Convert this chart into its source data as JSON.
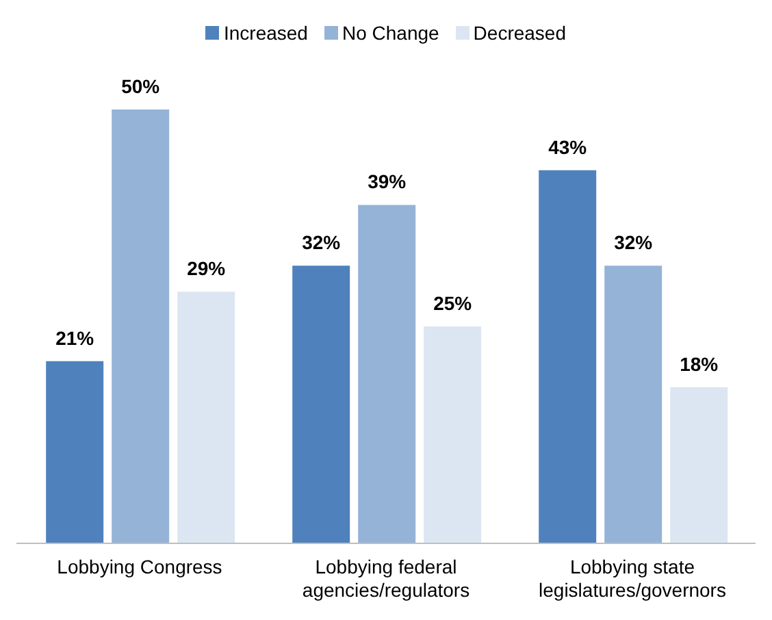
{
  "chart_data": {
    "type": "bar",
    "categories": [
      "Lobbying Congress",
      "Lobbying federal agencies/regulators",
      "Lobbying state legislatures/governors"
    ],
    "series": [
      {
        "name": "Increased",
        "color": "#4f81bd",
        "values": [
          21,
          32,
          43
        ],
        "value_labels": [
          "21%",
          "32%",
          "43%"
        ]
      },
      {
        "name": "No Change",
        "color": "#95b3d7",
        "values": [
          50,
          39,
          32
        ],
        "value_labels": [
          "50%",
          "39%",
          "32%"
        ]
      },
      {
        "name": "Decreased",
        "color": "#dce6f2",
        "values": [
          29,
          25,
          18
        ],
        "value_labels": [
          "29%",
          "25%",
          "18%"
        ]
      }
    ],
    "legend": "top",
    "grid": false
  }
}
